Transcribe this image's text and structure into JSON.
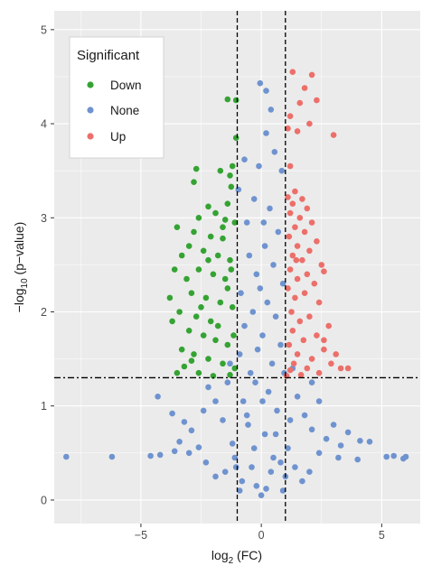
{
  "chart_data": {
    "type": "scatter",
    "title": "",
    "xlabel": {
      "main": "log",
      "sub": "2",
      "rest": " (FC)"
    },
    "ylabel": {
      "main": "−log",
      "sub": "10",
      "rest": " (p−value)"
    },
    "xlim": [
      -8.6,
      6.6
    ],
    "ylim": [
      -0.25,
      5.2
    ],
    "x_ticks": [
      -5,
      0,
      5
    ],
    "x_tick_labels": [
      "−5",
      "0",
      "5"
    ],
    "y_ticks": [
      0,
      1,
      2,
      3,
      4,
      5
    ],
    "y_tick_labels": [
      "0",
      "1",
      "2",
      "3",
      "4",
      "5"
    ],
    "grid": true,
    "background": "#ebebeb",
    "thresholds": {
      "fc": [
        -1,
        1
      ],
      "p": 1.3
    },
    "legend": {
      "title": "Significant",
      "position": "top-left",
      "items": [
        {
          "label": "Down",
          "color": "#35a333"
        },
        {
          "label": "None",
          "color": "#6f93cf"
        },
        {
          "label": "Up",
          "color": "#ec6f6a"
        }
      ]
    },
    "series": [
      {
        "name": "Down",
        "color": "#35a333",
        "points": [
          [
            -1.05,
            4.25
          ],
          [
            -1.4,
            4.26
          ],
          [
            -1.05,
            3.85
          ],
          [
            -1.2,
            3.55
          ],
          [
            -2.7,
            3.52
          ],
          [
            -1.7,
            3.5
          ],
          [
            -1.3,
            3.45
          ],
          [
            -2.8,
            3.38
          ],
          [
            -1.25,
            3.33
          ],
          [
            -1.4,
            3.15
          ],
          [
            -2.2,
            3.12
          ],
          [
            -1.9,
            3.05
          ],
          [
            -2.6,
            3.0
          ],
          [
            -1.5,
            2.98
          ],
          [
            -1.1,
            2.95
          ],
          [
            -2.8,
            2.85
          ],
          [
            -2.1,
            2.8
          ],
          [
            -1.6,
            2.78
          ],
          [
            -3.5,
            2.9
          ],
          [
            -3.0,
            2.7
          ],
          [
            -2.4,
            2.65
          ],
          [
            -1.8,
            2.6
          ],
          [
            -1.3,
            2.55
          ],
          [
            -3.3,
            2.6
          ],
          [
            -2.6,
            2.45
          ],
          [
            -2.0,
            2.4
          ],
          [
            -1.5,
            2.35
          ],
          [
            -3.6,
            2.45
          ],
          [
            -3.1,
            2.35
          ],
          [
            -2.9,
            2.2
          ],
          [
            -2.3,
            2.15
          ],
          [
            -1.7,
            2.1
          ],
          [
            -1.2,
            2.05
          ],
          [
            -3.4,
            2.0
          ],
          [
            -2.7,
            1.95
          ],
          [
            -2.1,
            1.9
          ],
          [
            -3.7,
            1.9
          ],
          [
            -3.0,
            1.8
          ],
          [
            -2.4,
            1.75
          ],
          [
            -1.9,
            1.7
          ],
          [
            -1.4,
            1.65
          ],
          [
            -3.3,
            1.6
          ],
          [
            -2.8,
            1.55
          ],
          [
            -2.2,
            1.5
          ],
          [
            -1.6,
            1.45
          ],
          [
            -1.1,
            1.4
          ],
          [
            -3.2,
            1.42
          ],
          [
            -2.6,
            1.35
          ],
          [
            -2.0,
            1.32
          ],
          [
            -1.3,
            1.33
          ],
          [
            -3.5,
            1.35
          ],
          [
            -1.8,
            1.85
          ],
          [
            -2.5,
            2.05
          ],
          [
            -1.4,
            2.25
          ],
          [
            -2.2,
            2.55
          ],
          [
            -1.6,
            2.9
          ],
          [
            -3.8,
            2.15
          ],
          [
            -2.9,
            1.48
          ],
          [
            -1.15,
            1.75
          ],
          [
            -1.25,
            2.45
          ]
        ]
      },
      {
        "name": "None",
        "color": "#6f93cf",
        "points": [
          [
            -8.1,
            0.46
          ],
          [
            -6.2,
            0.46
          ],
          [
            -4.6,
            0.47
          ],
          [
            -4.2,
            0.48
          ],
          [
            -3.6,
            0.52
          ],
          [
            -3.0,
            0.5
          ],
          [
            -2.6,
            0.56
          ],
          [
            -4.3,
            1.1
          ],
          [
            -3.7,
            0.92
          ],
          [
            -3.2,
            0.83
          ],
          [
            -2.9,
            0.74
          ],
          [
            -3.4,
            0.62
          ],
          [
            -2.4,
            0.95
          ],
          [
            -2.2,
            1.2
          ],
          [
            -1.9,
            1.05
          ],
          [
            -1.6,
            0.85
          ],
          [
            -1.4,
            1.25
          ],
          [
            -1.2,
            0.6
          ],
          [
            -1.05,
            0.35
          ],
          [
            -0.8,
            0.2
          ],
          [
            -0.6,
            0.9
          ],
          [
            -0.4,
            0.35
          ],
          [
            -0.2,
            0.15
          ],
          [
            0.0,
            0.05
          ],
          [
            0.2,
            0.12
          ],
          [
            0.4,
            0.3
          ],
          [
            0.6,
            0.7
          ],
          [
            0.8,
            0.4
          ],
          [
            1.0,
            0.25
          ],
          [
            1.2,
            0.85
          ],
          [
            1.5,
            1.1
          ],
          [
            1.8,
            0.9
          ],
          [
            2.1,
            0.75
          ],
          [
            2.4,
            1.05
          ],
          [
            2.7,
            0.65
          ],
          [
            3.0,
            0.8
          ],
          [
            3.3,
            0.58
          ],
          [
            3.6,
            0.72
          ],
          [
            4.1,
            0.63
          ],
          [
            4.5,
            0.62
          ],
          [
            2.1,
            1.25
          ],
          [
            2.4,
            0.5
          ],
          [
            3.2,
            0.45
          ],
          [
            4.0,
            0.43
          ],
          [
            5.2,
            0.46
          ],
          [
            5.5,
            0.47
          ],
          [
            5.9,
            0.44
          ],
          [
            6.0,
            0.46
          ],
          [
            -0.05,
            4.43
          ],
          [
            0.4,
            4.15
          ],
          [
            0.2,
            3.9
          ],
          [
            0.55,
            3.7
          ],
          [
            -0.7,
            3.62
          ],
          [
            -0.95,
            3.3
          ],
          [
            0.85,
            3.5
          ],
          [
            -0.3,
            3.2
          ],
          [
            0.35,
            3.1
          ],
          [
            -0.6,
            2.95
          ],
          [
            0.7,
            2.85
          ],
          [
            0.15,
            2.7
          ],
          [
            -0.5,
            2.6
          ],
          [
            0.5,
            2.5
          ],
          [
            -0.2,
            2.4
          ],
          [
            0.9,
            2.3
          ],
          [
            -0.85,
            2.2
          ],
          [
            0.25,
            2.1
          ],
          [
            -0.35,
            2.0
          ],
          [
            0.6,
            1.95
          ],
          [
            -0.7,
            1.85
          ],
          [
            0.05,
            1.75
          ],
          [
            0.8,
            1.65
          ],
          [
            -0.15,
            1.6
          ],
          [
            -0.9,
            1.55
          ],
          [
            0.45,
            1.45
          ],
          [
            -0.45,
            1.35
          ],
          [
            0.95,
            1.35
          ],
          [
            -0.25,
            1.25
          ],
          [
            0.3,
            1.15
          ],
          [
            -0.75,
            1.05
          ],
          [
            0.65,
            0.95
          ],
          [
            -0.55,
            0.8
          ],
          [
            0.15,
            0.7
          ],
          [
            -0.3,
            0.55
          ],
          [
            0.5,
            0.45
          ],
          [
            1.1,
            0.55
          ],
          [
            -1.1,
            0.45
          ],
          [
            1.4,
            0.35
          ],
          [
            -1.5,
            0.3
          ],
          [
            1.7,
            0.2
          ],
          [
            -1.9,
            0.25
          ],
          [
            2.0,
            0.3
          ],
          [
            -2.3,
            0.4
          ],
          [
            0.9,
            0.1
          ],
          [
            -0.9,
            0.1
          ],
          [
            1.3,
            1.4
          ],
          [
            -1.3,
            1.45
          ],
          [
            0.2,
            4.35
          ],
          [
            -0.1,
            3.55
          ],
          [
            0.1,
            2.95
          ],
          [
            -0.05,
            2.25
          ],
          [
            0.05,
            1.05
          ]
        ]
      },
      {
        "name": "Up",
        "color": "#ec6f6a",
        "points": [
          [
            1.3,
            4.55
          ],
          [
            2.1,
            4.52
          ],
          [
            1.8,
            4.38
          ],
          [
            1.6,
            4.22
          ],
          [
            2.3,
            4.25
          ],
          [
            1.2,
            4.08
          ],
          [
            2.0,
            4.0
          ],
          [
            1.1,
            3.95
          ],
          [
            1.5,
            3.92
          ],
          [
            3.0,
            3.88
          ],
          [
            1.2,
            3.55
          ],
          [
            1.4,
            3.28
          ],
          [
            1.1,
            3.22
          ],
          [
            1.7,
            3.2
          ],
          [
            1.3,
            3.15
          ],
          [
            1.9,
            3.1
          ],
          [
            1.2,
            3.05
          ],
          [
            1.6,
            3.0
          ],
          [
            2.1,
            2.95
          ],
          [
            1.4,
            2.9
          ],
          [
            1.8,
            2.85
          ],
          [
            1.15,
            2.8
          ],
          [
            2.3,
            2.75
          ],
          [
            1.5,
            2.7
          ],
          [
            2.0,
            2.65
          ],
          [
            1.3,
            2.6
          ],
          [
            1.7,
            2.55
          ],
          [
            2.5,
            2.5
          ],
          [
            1.2,
            2.45
          ],
          [
            1.9,
            2.4
          ],
          [
            2.6,
            2.43
          ],
          [
            1.5,
            2.35
          ],
          [
            2.2,
            2.3
          ],
          [
            1.1,
            2.25
          ],
          [
            1.8,
            2.2
          ],
          [
            1.4,
            2.15
          ],
          [
            2.4,
            2.1
          ],
          [
            1.25,
            2.0
          ],
          [
            2.0,
            1.95
          ],
          [
            1.6,
            1.9
          ],
          [
            2.8,
            1.85
          ],
          [
            1.3,
            1.8
          ],
          [
            2.3,
            1.75
          ],
          [
            1.75,
            1.7
          ],
          [
            1.15,
            1.65
          ],
          [
            2.6,
            1.6
          ],
          [
            1.5,
            1.55
          ],
          [
            3.1,
            1.55
          ],
          [
            2.1,
            1.5
          ],
          [
            1.35,
            1.45
          ],
          [
            2.9,
            1.45
          ],
          [
            1.9,
            1.4
          ],
          [
            1.2,
            1.38
          ],
          [
            3.6,
            1.4
          ],
          [
            2.4,
            1.35
          ],
          [
            1.65,
            1.33
          ],
          [
            3.3,
            1.4
          ],
          [
            1.05,
            1.32
          ],
          [
            2.6,
            1.7
          ],
          [
            1.45,
            2.55
          ]
        ]
      }
    ]
  }
}
